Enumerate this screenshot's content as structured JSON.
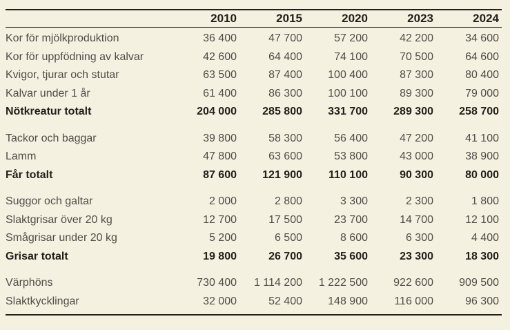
{
  "chart_data": {
    "type": "table",
    "title": "",
    "columns": [
      "2010",
      "2015",
      "2020",
      "2023",
      "2024"
    ],
    "groups": [
      {
        "name": "notkreatur",
        "rows": [
          {
            "label": "Kor för mjölkproduktion",
            "bold": false,
            "values": [
              "36 400",
              "47 700",
              "57 200",
              "42 200",
              "34 600"
            ]
          },
          {
            "label": "Kor för uppfödning av kalvar",
            "bold": false,
            "values": [
              "42 600",
              "64 400",
              "74 100",
              "70 500",
              "64 600"
            ]
          },
          {
            "label": "Kvigor, tjurar och stutar",
            "bold": false,
            "values": [
              "63 500",
              "87 400",
              "100 400",
              "87 300",
              "80 400"
            ]
          },
          {
            "label": "Kalvar under 1 år",
            "bold": false,
            "values": [
              "61 400",
              "86 300",
              "100 100",
              "89 300",
              "79 000"
            ]
          },
          {
            "label": "Nötkreatur totalt",
            "bold": true,
            "values": [
              "204 000",
              "285 800",
              "331 700",
              "289 300",
              "258 700"
            ]
          }
        ]
      },
      {
        "name": "far",
        "rows": [
          {
            "label": "Tackor och baggar",
            "bold": false,
            "values": [
              "39 800",
              "58 300",
              "56 400",
              "47 200",
              "41 100"
            ]
          },
          {
            "label": "Lamm",
            "bold": false,
            "values": [
              "47 800",
              "63 600",
              "53 800",
              "43 000",
              "38 900"
            ]
          },
          {
            "label": "Får totalt",
            "bold": true,
            "values": [
              "87 600",
              "121 900",
              "110 100",
              "90 300",
              "80 000"
            ]
          }
        ]
      },
      {
        "name": "grisar",
        "rows": [
          {
            "label": "Suggor och galtar",
            "bold": false,
            "values": [
              "2 000",
              "2 800",
              "3 300",
              "2 300",
              "1 800"
            ]
          },
          {
            "label": "Slaktgrisar över 20 kg",
            "bold": false,
            "values": [
              "12 700",
              "17 500",
              "23 700",
              "14 700",
              "12 100"
            ]
          },
          {
            "label": "Smågrisar under 20 kg",
            "bold": false,
            "values": [
              "5 200",
              "6 500",
              "8 600",
              "6 300",
              "4 400"
            ]
          },
          {
            "label": "Grisar totalt",
            "bold": true,
            "values": [
              "19 800",
              "26 700",
              "35 600",
              "23 300",
              "18 300"
            ]
          }
        ]
      },
      {
        "name": "fjaderfa",
        "rows": [
          {
            "label": "Värphöns",
            "bold": false,
            "values": [
              "730 400",
              "1 114 200",
              "1 222 500",
              "922 600",
              "909 500"
            ]
          },
          {
            "label": "Slaktkycklingar",
            "bold": false,
            "values": [
              "32 000",
              "52 400",
              "148 900",
              "116 000",
              "96 300"
            ]
          }
        ]
      }
    ],
    "layout": {
      "background": "#f5f1e0",
      "rule_color": "#211f1a",
      "text_color": "#4e4d49",
      "bold_text_color": "#211f1a",
      "grid": "none",
      "column_alignment": "right"
    }
  }
}
